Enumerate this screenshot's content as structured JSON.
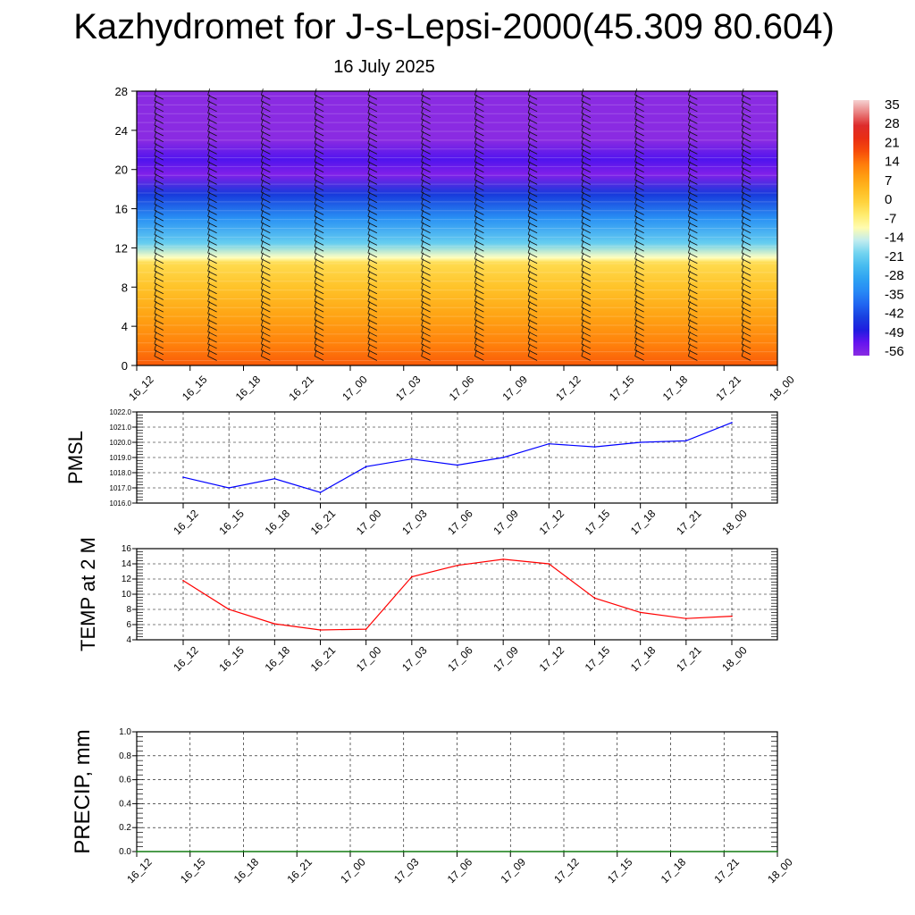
{
  "header": {
    "title": "Kazhydromet for J-s-Lepsi-2000(45.309 80.604)",
    "subtitle": "16 July 2025"
  },
  "chart_data": [
    {
      "type": "heatmap",
      "name": "vertical-cross-section",
      "x": [
        "16_12",
        "16_15",
        "16_18",
        "16_21",
        "17_00",
        "17_03",
        "17_06",
        "17_09",
        "17_12",
        "17_15",
        "17_18",
        "17_21",
        "18_00"
      ],
      "yticks": [
        0,
        4,
        8,
        12,
        16,
        20,
        24,
        28
      ],
      "ylim": [
        0,
        28
      ],
      "colorbar": {
        "labels": [
          35,
          28,
          21,
          14,
          7,
          0,
          -7,
          -14,
          -21,
          -28,
          -35,
          -42,
          -49,
          -56
        ],
        "range": [
          -60,
          38
        ]
      },
      "temperature_by_height": [
        {
          "h": 0,
          "t": 17
        },
        {
          "h": 2,
          "t": 13
        },
        {
          "h": 5,
          "t": 8
        },
        {
          "h": 8,
          "t": 2
        },
        {
          "h": 10.5,
          "t": -3
        },
        {
          "h": 11,
          "t": -12
        },
        {
          "h": 12.5,
          "t": -22
        },
        {
          "h": 15,
          "t": -34
        },
        {
          "h": 17.5,
          "t": -46
        },
        {
          "h": 19.5,
          "t": -58
        },
        {
          "h": 21,
          "t": -54
        },
        {
          "h": 23,
          "t": -60
        },
        {
          "h": 28,
          "t": -60
        }
      ],
      "wind_barbs": true,
      "grid": false
    },
    {
      "type": "line",
      "name": "pmsl",
      "ylabel": "PMSL",
      "x": [
        "16_12",
        "16_15",
        "16_18",
        "16_21",
        "17_00",
        "17_03",
        "17_06",
        "17_09",
        "17_12",
        "17_15",
        "17_18",
        "17_21",
        "18_00"
      ],
      "series": [
        {
          "values": [
            1017.7,
            1017.0,
            1017.6,
            1016.7,
            1018.4,
            1018.9,
            1018.5,
            1019.0,
            1019.9,
            1019.7,
            1020.0,
            1020.1,
            1021.3
          ],
          "color": "#0000ff"
        }
      ],
      "yticks": [
        "1016.0",
        "1017.0",
        "1018.0",
        "1019.0",
        "1020.0",
        "1021.0",
        "1022.0"
      ],
      "ylim": [
        1016,
        1022
      ],
      "grid": true
    },
    {
      "type": "line",
      "name": "temp2m",
      "ylabel": "TEMP at 2 M",
      "x": [
        "16_12",
        "16_15",
        "16_18",
        "16_21",
        "17_00",
        "17_03",
        "17_06",
        "17_09",
        "17_12",
        "17_15",
        "17_18",
        "17_21",
        "18_00"
      ],
      "series": [
        {
          "values": [
            11.8,
            8.0,
            6.1,
            5.3,
            5.4,
            12.3,
            13.8,
            14.6,
            14.0,
            9.5,
            7.6,
            6.8,
            7.1
          ],
          "color": "#ff0000"
        }
      ],
      "yticks": [
        "4",
        "6",
        "8",
        "10",
        "12",
        "14",
        "16"
      ],
      "ylim": [
        4,
        16
      ],
      "grid": true
    },
    {
      "type": "line",
      "name": "precip",
      "ylabel": "PRECIP, mm",
      "x": [
        "16_12",
        "16_15",
        "16_18",
        "16_21",
        "17_00",
        "17_03",
        "17_06",
        "17_09",
        "17_12",
        "17_15",
        "17_18",
        "17_21",
        "18_00"
      ],
      "series": [
        {
          "values": [
            0,
            0,
            0,
            0,
            0,
            0,
            0,
            0,
            0,
            0,
            0,
            0,
            0
          ],
          "color": "#008000"
        }
      ],
      "yticks": [
        "0.0",
        "0.2",
        "0.4",
        "0.6",
        "0.8",
        "1.0"
      ],
      "ylim": [
        0,
        1
      ],
      "grid": true
    }
  ]
}
